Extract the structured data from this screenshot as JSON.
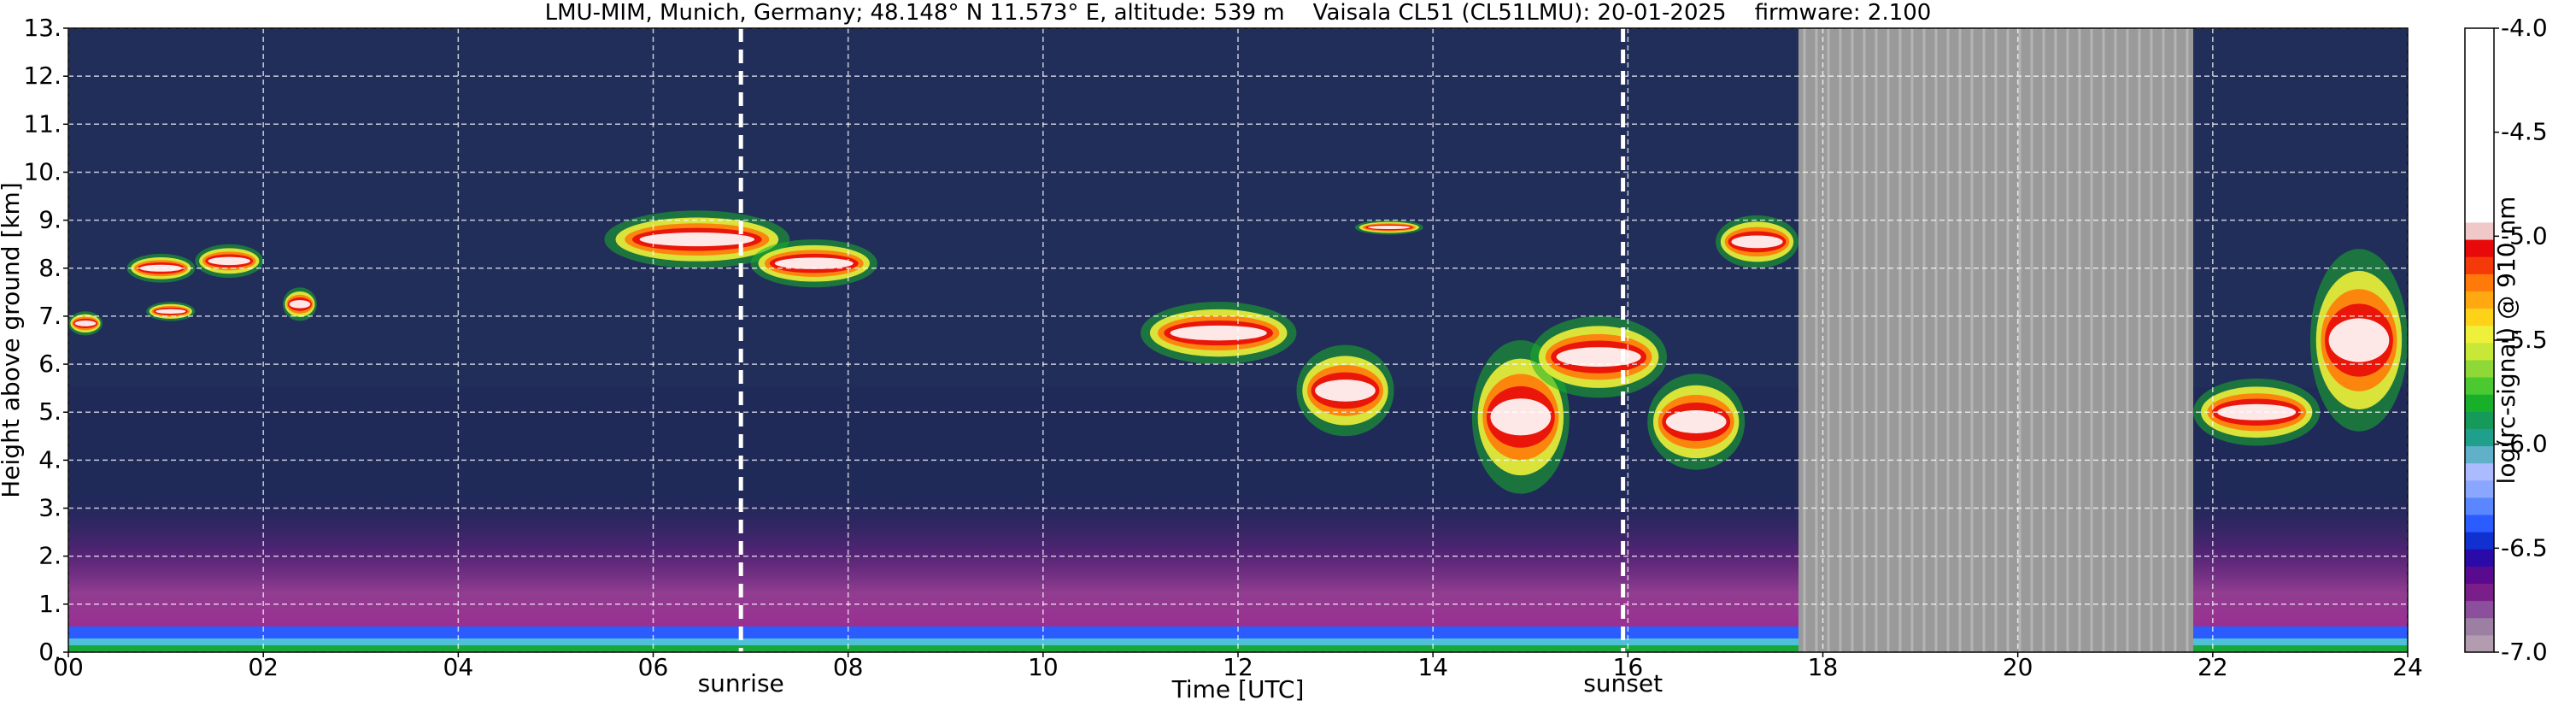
{
  "chart_data": {
    "type": "heatmap",
    "title": "LMU-MIM, Munich, Germany; 48.148° N 11.573° E, altitude: 539 m    Vaisala CL51 (CL51LMU): 20-01-2025    firmware: 2.100",
    "xlabel": "Time [UTC]",
    "ylabel": "Height above ground [km]",
    "xlim": [
      0,
      24
    ],
    "ylim": [
      0,
      13
    ],
    "x_ticks": [
      "00",
      "02",
      "04",
      "06",
      "08",
      "10",
      "12",
      "14",
      "16",
      "18",
      "20",
      "22",
      "24"
    ],
    "y_ticks": [
      "0.",
      "1.",
      "2.",
      "3.",
      "4.",
      "5.",
      "6.",
      "7.",
      "8.",
      "9.",
      "10.",
      "11.",
      "12.",
      "13."
    ],
    "grid": true,
    "colorbar": {
      "label": "log(rc-signal) @ 910 nm",
      "range": [
        -7.0,
        -4.0
      ],
      "ticks": [
        "-4.0",
        "-4.5",
        "-5.0",
        "-5.5",
        "-6.0",
        "-6.5",
        "-7.0"
      ],
      "colors": [
        "#b39bb0",
        "#9c7fa3",
        "#8c4f9c",
        "#7a1f8a",
        "#5a0a8f",
        "#2a0aa8",
        "#1030d0",
        "#2a5cff",
        "#5a86ff",
        "#8aa6ff",
        "#aabbff",
        "#5fb0c8",
        "#1fa08a",
        "#159a5a",
        "#18b02a",
        "#4cc830",
        "#8ed838",
        "#c8e838",
        "#eef03a",
        "#ffd21a",
        "#ffa812",
        "#ff7a0a",
        "#f53a0a",
        "#e80a0a",
        "#f0c8c8",
        "#ffffff"
      ]
    },
    "markers": [
      {
        "label": "sunrise",
        "x": 6.9
      },
      {
        "label": "sunset",
        "x": 15.95
      }
    ],
    "data_gaps": [
      [
        17.75,
        21.8
      ]
    ],
    "cloud_layers": [
      {
        "t_start": 0.0,
        "t_end": 0.35,
        "base_km": 6.6,
        "top_km": 7.1
      },
      {
        "t_start": 0.6,
        "t_end": 1.3,
        "base_km": 7.7,
        "top_km": 8.3
      },
      {
        "t_start": 0.8,
        "t_end": 1.3,
        "base_km": 6.9,
        "top_km": 7.3
      },
      {
        "t_start": 1.3,
        "t_end": 2.0,
        "base_km": 7.8,
        "top_km": 8.5
      },
      {
        "t_start": 2.2,
        "t_end": 2.55,
        "base_km": 6.9,
        "top_km": 7.6
      },
      {
        "t_start": 5.5,
        "t_end": 7.4,
        "base_km": 8.0,
        "top_km": 9.2
      },
      {
        "t_start": 7.0,
        "t_end": 8.3,
        "base_km": 7.6,
        "top_km": 8.6
      },
      {
        "t_start": 11.0,
        "t_end": 12.6,
        "base_km": 6.0,
        "top_km": 7.3
      },
      {
        "t_start": 12.6,
        "t_end": 13.6,
        "base_km": 4.5,
        "top_km": 6.4
      },
      {
        "t_start": 13.2,
        "t_end": 13.9,
        "base_km": 8.7,
        "top_km": 9.0
      },
      {
        "t_start": 14.4,
        "t_end": 15.4,
        "base_km": 3.3,
        "top_km": 6.5
      },
      {
        "t_start": 15.0,
        "t_end": 16.4,
        "base_km": 5.3,
        "top_km": 7.0
      },
      {
        "t_start": 16.2,
        "t_end": 17.2,
        "base_km": 3.8,
        "top_km": 5.8
      },
      {
        "t_start": 16.9,
        "t_end": 17.75,
        "base_km": 8.0,
        "top_km": 9.1
      },
      {
        "t_start": 21.8,
        "t_end": 23.1,
        "base_km": 4.3,
        "top_km": 5.7
      },
      {
        "t_start": 23.0,
        "t_end": 24.0,
        "base_km": 4.6,
        "top_km": 8.4
      }
    ]
  }
}
